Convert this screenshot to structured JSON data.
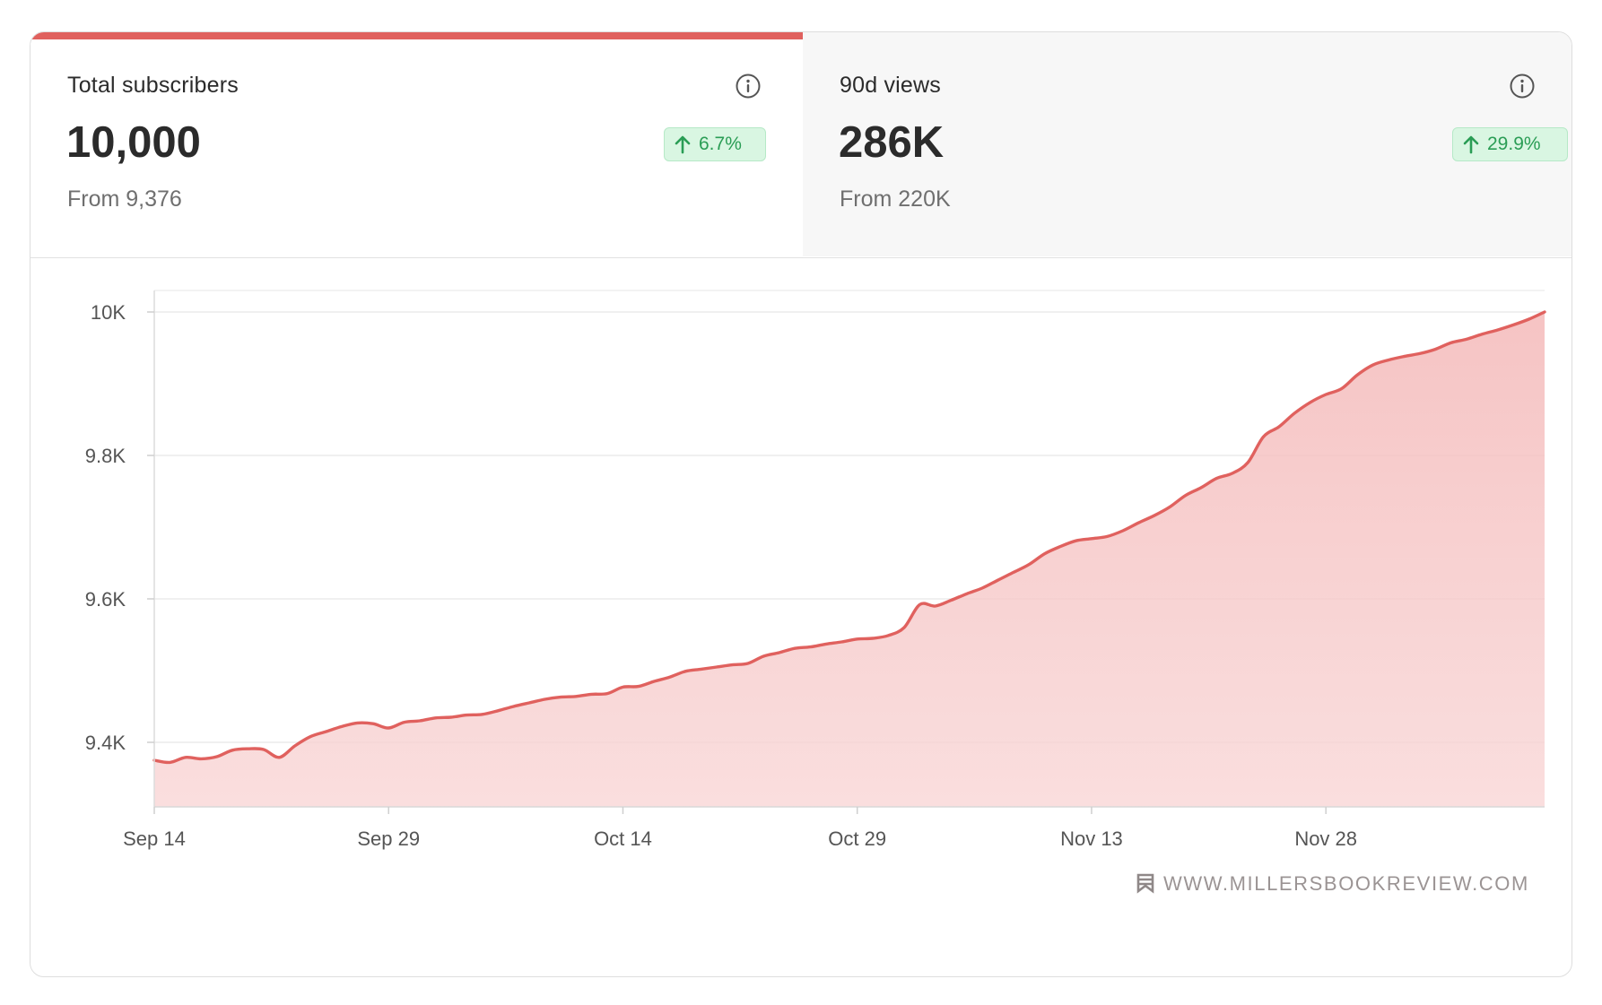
{
  "tabs": [
    {
      "label": "Total subscribers",
      "value": "10,000",
      "from": "From 9,376",
      "change": "6.7%",
      "icon": "info-icon",
      "active": true
    },
    {
      "label": "90d views",
      "value": "286K",
      "from": "From 220K",
      "change": "29.9%",
      "icon": "info-icon",
      "active": false
    }
  ],
  "colors": {
    "accent": "#e0615e",
    "fill": "#f7c9c9",
    "badge_bg": "#d9f6e2",
    "badge_text": "#2a9d55"
  },
  "watermark": {
    "icon": "bookmark-icon",
    "text": "WWW.MILLERSBOOKREVIEW.COM"
  },
  "chart_data": {
    "type": "area",
    "title": "",
    "xlabel": "",
    "ylabel": "",
    "x_ticks": [
      "Sep 14",
      "Sep 29",
      "Oct 14",
      "Oct 29",
      "Nov 13",
      "Nov 28"
    ],
    "y_ticks": [
      "9.4K",
      "9.6K",
      "9.8K",
      "10K"
    ],
    "y_tick_values": [
      9400,
      9600,
      9800,
      10000
    ],
    "ylim": [
      9310,
      10030
    ],
    "x_day_range": [
      "Sep 14",
      "Dec 12"
    ],
    "grid": true,
    "series": [
      {
        "values": [
          [
            0,
            9375
          ],
          [
            1,
            9372
          ],
          [
            2,
            9379
          ],
          [
            3,
            9377
          ],
          [
            4,
            9380
          ],
          [
            5,
            9389
          ],
          [
            6,
            9391
          ],
          [
            7,
            9390
          ],
          [
            8,
            9379
          ],
          [
            9,
            9395
          ],
          [
            10,
            9408
          ],
          [
            11,
            9415
          ],
          [
            12,
            9422
          ],
          [
            13,
            9427
          ],
          [
            14,
            9426
          ],
          [
            15,
            9420
          ],
          [
            16,
            9428
          ],
          [
            17,
            9430
          ],
          [
            18,
            9434
          ],
          [
            19,
            9435
          ],
          [
            20,
            9438
          ],
          [
            21,
            9439
          ],
          [
            22,
            9444
          ],
          [
            23,
            9450
          ],
          [
            24,
            9455
          ],
          [
            25,
            9460
          ],
          [
            26,
            9463
          ],
          [
            27,
            9464
          ],
          [
            28,
            9467
          ],
          [
            29,
            9468
          ],
          [
            30,
            9477
          ],
          [
            31,
            9478
          ],
          [
            32,
            9485
          ],
          [
            33,
            9491
          ],
          [
            34,
            9499
          ],
          [
            35,
            9502
          ],
          [
            36,
            9505
          ],
          [
            37,
            9508
          ],
          [
            38,
            9510
          ],
          [
            39,
            9520
          ],
          [
            40,
            9525
          ],
          [
            41,
            9531
          ],
          [
            42,
            9533
          ],
          [
            43,
            9537
          ],
          [
            44,
            9540
          ],
          [
            45,
            9544
          ],
          [
            46,
            9545
          ],
          [
            47,
            9549
          ],
          [
            48,
            9560
          ],
          [
            49,
            9592
          ],
          [
            50,
            9590
          ],
          [
            51,
            9598
          ],
          [
            52,
            9607
          ],
          [
            53,
            9615
          ],
          [
            54,
            9626
          ],
          [
            55,
            9637
          ],
          [
            56,
            9648
          ],
          [
            57,
            9663
          ],
          [
            58,
            9673
          ],
          [
            59,
            9681
          ],
          [
            60,
            9684
          ],
          [
            61,
            9687
          ],
          [
            62,
            9695
          ],
          [
            63,
            9706
          ],
          [
            64,
            9716
          ],
          [
            65,
            9728
          ],
          [
            66,
            9744
          ],
          [
            67,
            9755
          ],
          [
            68,
            9768
          ],
          [
            69,
            9775
          ],
          [
            70,
            9790
          ],
          [
            71,
            9826
          ],
          [
            72,
            9840
          ],
          [
            73,
            9859
          ],
          [
            74,
            9874
          ],
          [
            75,
            9885
          ],
          [
            76,
            9893
          ],
          [
            77,
            9912
          ],
          [
            78,
            9926
          ],
          [
            79,
            9933
          ],
          [
            80,
            9938
          ],
          [
            81,
            9942
          ],
          [
            82,
            9948
          ],
          [
            83,
            9957
          ],
          [
            84,
            9962
          ],
          [
            85,
            9969
          ],
          [
            86,
            9975
          ],
          [
            87,
            9982
          ],
          [
            88,
            9990
          ],
          [
            89,
            10000
          ]
        ]
      }
    ]
  }
}
